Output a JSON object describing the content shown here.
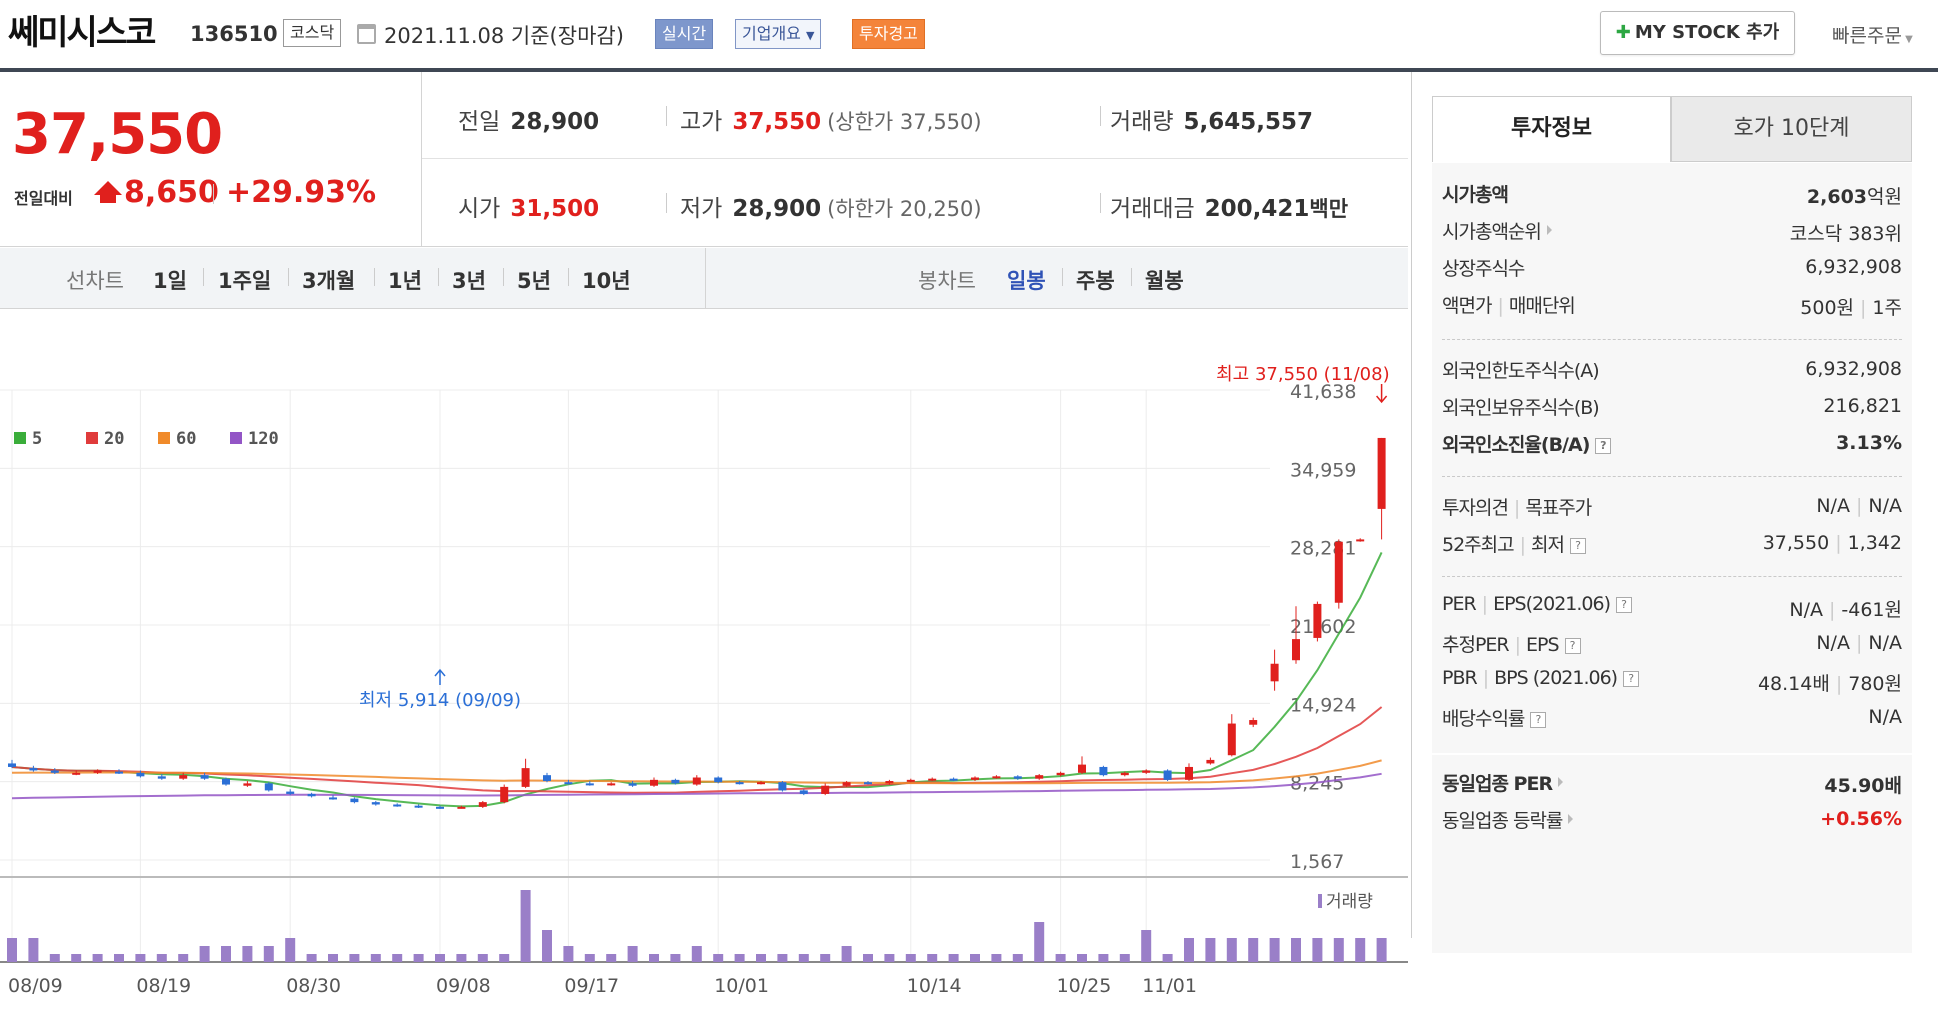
{
  "header": {
    "stock_name": "쎄미시스코",
    "stock_code": "136510",
    "market_tag": "코스닥",
    "date_text": "2021.11.08 기준(장마감)",
    "realtime_label": "실시간",
    "overview_label": "기업개요",
    "warning_label": "투자경고",
    "mystock_label": "MY STOCK 추가",
    "quick_order_label": "빠른주문"
  },
  "price": {
    "current": "37,550",
    "change_label": "전일대비",
    "change": "8,650",
    "change_pct": "+29.93%"
  },
  "stats": {
    "prev_label": "전일",
    "prev_value": "28,900",
    "high_label": "고가",
    "high_value": "37,550",
    "upper_limit": "(상한가 37,550)",
    "volume_label": "거래량",
    "volume_value": "5,645,557",
    "open_label": "시가",
    "open_value": "31,500",
    "low_label": "저가",
    "low_value": "28,900",
    "lower_limit": "(하한가 20,250)",
    "amount_label": "거래대금",
    "amount_value": "200,421",
    "amount_unit": "백만"
  },
  "period_bar": {
    "line_label": "선차트",
    "periods": [
      "1일",
      "1주일",
      "3개월",
      "1년",
      "3년",
      "5년",
      "10년"
    ],
    "candle_label": "봉차트",
    "candles": [
      "일봉",
      "주봉",
      "월봉"
    ],
    "active_candle": "일봉"
  },
  "chart_data": {
    "type": "candlestick",
    "legend": [
      "5",
      "20",
      "60",
      "120"
    ],
    "legend_colors": [
      "#3aad3a",
      "#e03b3b",
      "#f08a2a",
      "#9355c6"
    ],
    "y_ticks": [
      41638,
      34959,
      28281,
      21602,
      14924,
      8245,
      1567
    ],
    "y_tick_labels": [
      "41,638",
      "34,959",
      "28,281",
      "21,602",
      "14,924",
      "8,245",
      "1,567"
    ],
    "x_tick_labels": [
      "08/09",
      "08/19",
      "08/30",
      "09/08",
      "09/17",
      "10/01",
      "10/14",
      "10/25",
      "11/01"
    ],
    "x_tick_index": [
      0,
      6,
      13,
      20,
      26,
      33,
      42,
      49,
      53
    ],
    "candles": [
      [
        9800,
        9500,
        10100,
        9400
      ],
      [
        9400,
        9200,
        9600,
        9100
      ],
      [
        9200,
        9000,
        9400,
        8900
      ],
      [
        8900,
        9000,
        9200,
        8800
      ],
      [
        9000,
        9200,
        9300,
        8900
      ],
      [
        9100,
        9000,
        9300,
        8900
      ],
      [
        9000,
        8700,
        9200,
        8600
      ],
      [
        8700,
        8500,
        8900,
        8400
      ],
      [
        8500,
        8800,
        9000,
        8400
      ],
      [
        8800,
        8500,
        9000,
        8400
      ],
      [
        8500,
        8000,
        8600,
        7900
      ],
      [
        7900,
        8100,
        8300,
        7800
      ],
      [
        8100,
        7500,
        8200,
        7400
      ],
      [
        7400,
        7200,
        7600,
        7100
      ],
      [
        7200,
        7000,
        7300,
        6900
      ],
      [
        6900,
        6800,
        7100,
        6700
      ],
      [
        6800,
        6500,
        6900,
        6400
      ],
      [
        6500,
        6300,
        6600,
        6200
      ],
      [
        6300,
        6200,
        6400,
        6100
      ],
      [
        6200,
        6100,
        6300,
        6000
      ],
      [
        6100,
        6000,
        6200,
        5914
      ],
      [
        6000,
        6100,
        6200,
        5950
      ],
      [
        6100,
        6500,
        6600,
        6000
      ],
      [
        6500,
        7800,
        8000,
        6400
      ],
      [
        7800,
        9400,
        10200,
        7700
      ],
      [
        8800,
        8300,
        9000,
        8200
      ],
      [
        8200,
        8100,
        8400,
        8000
      ],
      [
        8100,
        8000,
        8300,
        7900
      ],
      [
        8000,
        8100,
        8200,
        7900
      ],
      [
        8100,
        7900,
        8300,
        7800
      ],
      [
        7900,
        8400,
        8600,
        7800
      ],
      [
        8400,
        8100,
        8500,
        8000
      ],
      [
        8000,
        8600,
        8800,
        7900
      ],
      [
        8600,
        8200,
        8700,
        8100
      ],
      [
        8200,
        8100,
        8300,
        8000
      ],
      [
        8100,
        8200,
        8300,
        8000
      ],
      [
        8200,
        7500,
        8300,
        7400
      ],
      [
        7500,
        7200,
        7600,
        7100
      ],
      [
        7200,
        7900,
        8100,
        7100
      ],
      [
        7900,
        8200,
        8300,
        7800
      ],
      [
        8200,
        8100,
        8300,
        8000
      ],
      [
        8100,
        8300,
        8400,
        8000
      ],
      [
        8300,
        8400,
        8500,
        8200
      ],
      [
        8400,
        8500,
        8600,
        8300
      ],
      [
        8500,
        8400,
        8600,
        8300
      ],
      [
        8400,
        8600,
        8700,
        8300
      ],
      [
        8600,
        8700,
        8800,
        8500
      ],
      [
        8700,
        8500,
        8800,
        8400
      ],
      [
        8500,
        8800,
        8900,
        8400
      ],
      [
        8800,
        9000,
        9100,
        8700
      ],
      [
        9000,
        9700,
        10400,
        8900
      ],
      [
        9500,
        8800,
        9600,
        8700
      ],
      [
        8800,
        9000,
        9100,
        8700
      ],
      [
        9000,
        9200,
        9300,
        8900
      ],
      [
        9200,
        8400,
        9300,
        8300
      ],
      [
        8400,
        9500,
        9800,
        8300
      ],
      [
        9800,
        10100,
        10300,
        9700
      ],
      [
        10500,
        13200,
        14000,
        10400
      ],
      [
        13100,
        13500,
        13700,
        12900
      ],
      [
        16800,
        18300,
        19500,
        16000
      ],
      [
        18600,
        20400,
        23200,
        18300
      ],
      [
        20500,
        23400,
        23600,
        20200
      ],
      [
        23500,
        28700,
        28900,
        23000
      ],
      [
        28800,
        28900,
        29000,
        28700
      ],
      [
        31500,
        37550,
        37550,
        28900
      ]
    ],
    "high_label": "최고 37,550 (11/08)",
    "low_label": "최저 5,914 (09/09)",
    "volume_label": "거래량"
  },
  "info": {
    "tab_info": "투자정보",
    "tab_hoga": "호가 10단계",
    "market_cap_label": "시가총액",
    "market_cap_value": "2,603",
    "market_cap_unit": "억원",
    "rank_label": "시가총액순위",
    "rank_value": "코스닥 383위",
    "shares_label": "상장주식수",
    "shares_value": "6,932,908",
    "facevalue_label": "액면가",
    "trade_unit_label": "매매단위",
    "facevalue_value": "500원",
    "trade_unit_value": "1주",
    "foreign_limit_label": "외국인한도주식수(A)",
    "foreign_limit_value": "6,932,908",
    "foreign_hold_label": "외국인보유주식수(B)",
    "foreign_hold_value": "216,821",
    "foreign_ratio_label": "외국인소진율(B/A)",
    "foreign_ratio_value": "3.13%",
    "opinion_label": "투자의견",
    "target_label": "목표주가",
    "opinion_value": "N/A",
    "target_value": "N/A",
    "w52_high_label": "52주최고",
    "w52_low_label": "최저",
    "w52_high_value": "37,550",
    "w52_low_value": "1,342",
    "per_label": "PER",
    "eps_label": "EPS(2021.06)",
    "per_value": "N/A",
    "eps_value": "-461원",
    "est_per_label": "추정PER",
    "est_eps_label": "EPS",
    "est_per_value": "N/A",
    "est_eps_value": "N/A",
    "pbr_label": "PBR",
    "bps_label": "BPS (2021.06)",
    "pbr_value": "48.14배",
    "bps_value": "780원",
    "dividend_label": "배당수익률",
    "dividend_value": "N/A",
    "sector_per_label": "동일업종 PER",
    "sector_per_value": "45.90배",
    "sector_rate_label": "동일업종 등락률",
    "sector_rate_value": "+0.56%"
  }
}
